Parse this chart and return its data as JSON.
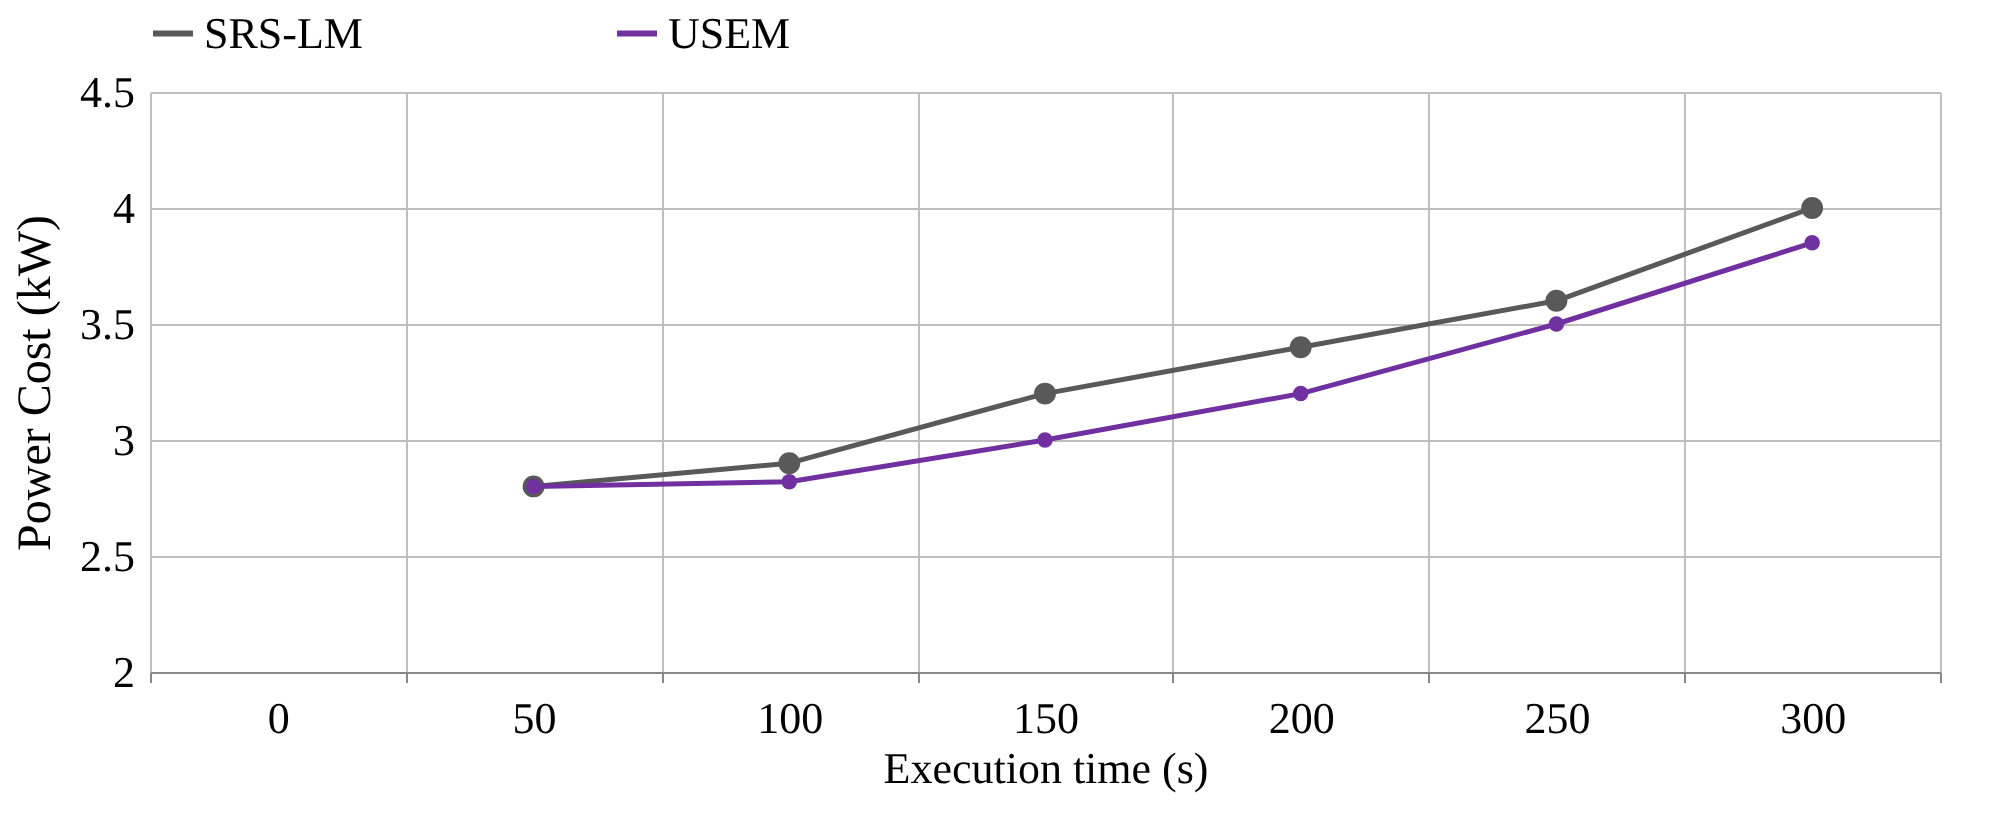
{
  "chart_data": {
    "type": "line",
    "xlabel": "Execution time (s)",
    "ylabel": "Power Cost  (kW)",
    "categories": [
      "0",
      "50",
      "100",
      "150",
      "200",
      "250",
      "300"
    ],
    "series": [
      {
        "name": "SRS-LM",
        "color": "#595959",
        "values": [
          null,
          2.8,
          2.9,
          3.2,
          3.4,
          3.6,
          4.0
        ]
      },
      {
        "name": "USEM",
        "color": "#7030a0",
        "values": [
          null,
          2.8,
          2.82,
          3.0,
          3.2,
          3.5,
          3.85
        ]
      }
    ],
    "ylim": [
      2,
      4.5
    ],
    "yticks": [
      2,
      2.5,
      3,
      3.5,
      4,
      4.5
    ],
    "grid": true,
    "legend": "top",
    "marker": "circle",
    "line_style": "solid"
  }
}
